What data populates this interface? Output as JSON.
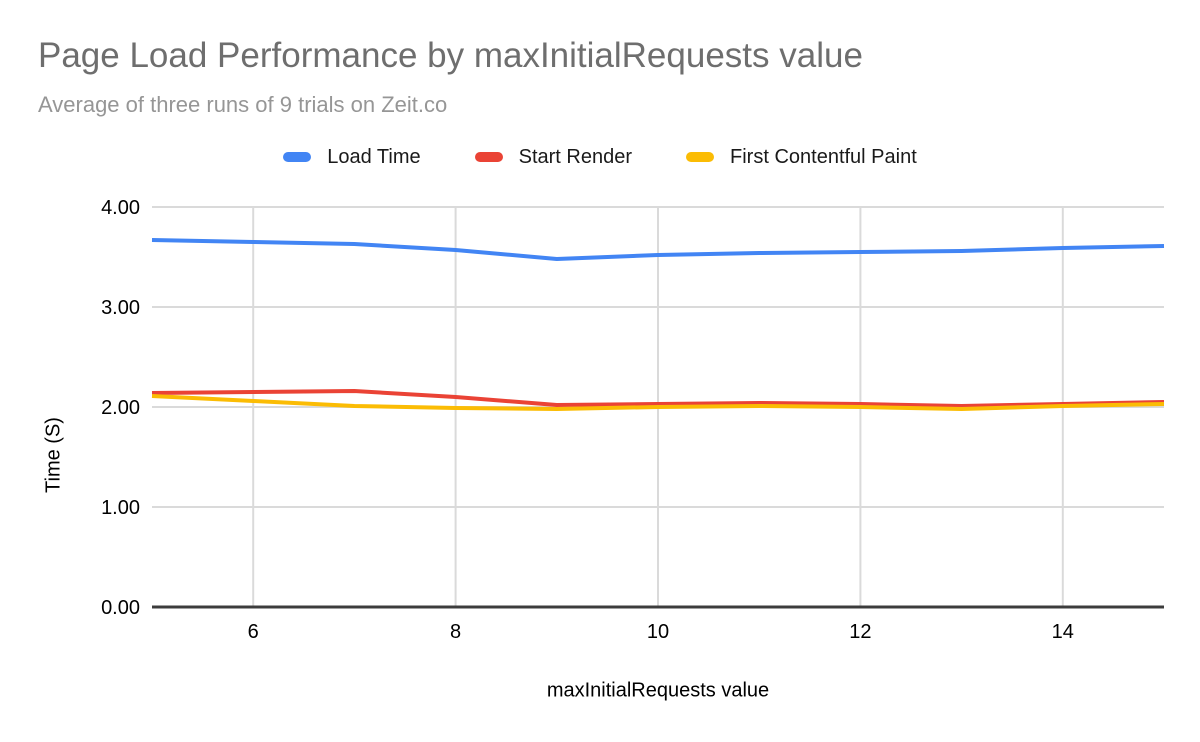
{
  "chart_data": {
    "type": "line",
    "title": "Page Load Performance by maxInitialRequests value",
    "subtitle": "Average of three runs of 9 trials on Zeit.co",
    "xlabel": "maxInitialRequests value",
    "ylabel": "Time (S)",
    "x": [
      5,
      6,
      7,
      8,
      9,
      10,
      11,
      12,
      13,
      14,
      15
    ],
    "series": [
      {
        "name": "Load Time",
        "color": "#4285F4",
        "values": [
          3.67,
          3.65,
          3.63,
          3.57,
          3.48,
          3.52,
          3.54,
          3.55,
          3.56,
          3.59,
          3.61
        ]
      },
      {
        "name": "Start Render",
        "color": "#EA4335",
        "values": [
          2.14,
          2.15,
          2.16,
          2.1,
          2.02,
          2.03,
          2.04,
          2.03,
          2.01,
          2.03,
          2.05
        ]
      },
      {
        "name": "First Contentful Paint",
        "color": "#FBBC04",
        "values": [
          2.11,
          2.06,
          2.01,
          1.99,
          1.98,
          2.0,
          2.01,
          2.0,
          1.98,
          2.01,
          2.03
        ]
      }
    ],
    "xlim": [
      5,
      15
    ],
    "ylim": [
      0,
      4
    ],
    "x_ticks": [
      6,
      8,
      10,
      12,
      14
    ],
    "y_ticks": [
      0,
      1,
      2,
      3,
      4
    ],
    "y_tick_labels": [
      "0.00",
      "1.00",
      "2.00",
      "3.00",
      "4.00"
    ],
    "grid": true,
    "legend_position": "top"
  },
  "style": {
    "background": "#ffffff",
    "title_color": "#6e6e6e",
    "subtitle_color": "#969696",
    "gridline_color": "#dadada",
    "axis_line_color": "#3c3c3c",
    "tick_label_color": "#000000",
    "line_width": 4
  }
}
